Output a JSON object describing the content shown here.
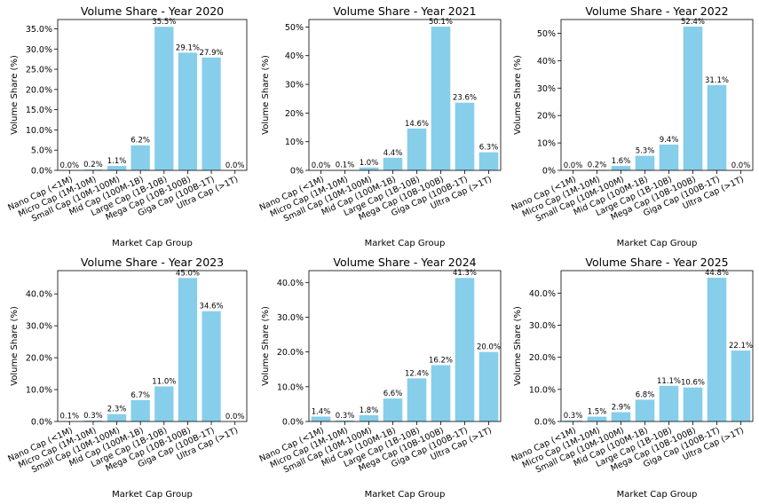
{
  "chart_data": [
    {
      "type": "bar",
      "title": "Volume Share - Year 2020",
      "xlabel": "Market Cap Group",
      "ylabel": "Volume Share (%)",
      "categories": [
        "Nano Cap (<1M)",
        "Micro Cap (1M-10M)",
        "Small Cap (10M-100M)",
        "Mid Cap (100M-1B)",
        "Large Cap (1B-10B)",
        "Mega Cap (10B-100B)",
        "Giga Cap (100B-1T)",
        "Ultra Cap (>1T)"
      ],
      "values": [
        0.0,
        0.2,
        1.1,
        6.2,
        35.5,
        29.1,
        27.9,
        0.0
      ],
      "ylim": [
        0,
        37.3
      ],
      "yticks": [
        0,
        5,
        10,
        15,
        20,
        25,
        30,
        35
      ],
      "ytick_labels": [
        "0.0%",
        "5.0%",
        "10.0%",
        "15.0%",
        "20.0%",
        "25.0%",
        "30.0%",
        "35.0%"
      ],
      "bar_color": "#87ceeb"
    },
    {
      "type": "bar",
      "title": "Volume Share - Year 2021",
      "xlabel": "Market Cap Group",
      "ylabel": "Volume Share (%)",
      "categories": [
        "Nano Cap (<1M)",
        "Micro Cap (1M-10M)",
        "Small Cap (10M-100M)",
        "Mid Cap (100M-1B)",
        "Large Cap (1B-10B)",
        "Mega Cap (10B-100B)",
        "Giga Cap (100B-1T)",
        "Ultra Cap (>1T)"
      ],
      "values": [
        0.0,
        0.1,
        1.0,
        4.4,
        14.6,
        50.1,
        23.6,
        6.3
      ],
      "ylim": [
        0,
        52.6
      ],
      "yticks": [
        0,
        10,
        20,
        30,
        40,
        50
      ],
      "ytick_labels": [
        "0%",
        "10%",
        "20%",
        "30%",
        "40%",
        "50%"
      ],
      "bar_color": "#87ceeb"
    },
    {
      "type": "bar",
      "title": "Volume Share - Year 2022",
      "xlabel": "Market Cap Group",
      "ylabel": "Volume Share (%)",
      "categories": [
        "Nano Cap (<1M)",
        "Micro Cap (1M-10M)",
        "Small Cap (10M-100M)",
        "Mid Cap (100M-1B)",
        "Large Cap (1B-10B)",
        "Mega Cap (10B-100B)",
        "Giga Cap (100B-1T)",
        "Ultra Cap (>1T)"
      ],
      "values": [
        0.0,
        0.2,
        1.6,
        5.3,
        9.4,
        52.4,
        31.1,
        0.0
      ],
      "ylim": [
        0,
        55.0
      ],
      "yticks": [
        0,
        10,
        20,
        30,
        40,
        50
      ],
      "ytick_labels": [
        "0%",
        "10%",
        "20%",
        "30%",
        "40%",
        "50%"
      ],
      "bar_color": "#87ceeb"
    },
    {
      "type": "bar",
      "title": "Volume Share - Year 2023",
      "xlabel": "Market Cap Group",
      "ylabel": "Volume Share (%)",
      "categories": [
        "Nano Cap (<1M)",
        "Micro Cap (1M-10M)",
        "Small Cap (10M-100M)",
        "Mid Cap (100M-1B)",
        "Large Cap (1B-10B)",
        "Mega Cap (10B-100B)",
        "Giga Cap (100B-1T)",
        "Ultra Cap (>1T)"
      ],
      "values": [
        0.1,
        0.3,
        2.3,
        6.7,
        11.0,
        45.0,
        34.6,
        0.0
      ],
      "ylim": [
        0,
        47.3
      ],
      "yticks": [
        0,
        10,
        20,
        30,
        40
      ],
      "ytick_labels": [
        "0.0%",
        "10.0%",
        "20.0%",
        "30.0%",
        "40.0%"
      ],
      "bar_color": "#87ceeb"
    },
    {
      "type": "bar",
      "title": "Volume Share - Year 2024",
      "xlabel": "Market Cap Group",
      "ylabel": "Volume Share (%)",
      "categories": [
        "Nano Cap (<1M)",
        "Micro Cap (1M-10M)",
        "Small Cap (10M-100M)",
        "Mid Cap (100M-1B)",
        "Large Cap (1B-10B)",
        "Mega Cap (10B-100B)",
        "Giga Cap (100B-1T)",
        "Ultra Cap (>1T)"
      ],
      "values": [
        1.4,
        0.3,
        1.8,
        6.6,
        12.4,
        16.2,
        41.3,
        20.0
      ],
      "ylim": [
        0,
        43.4
      ],
      "yticks": [
        0,
        10,
        20,
        30,
        40
      ],
      "ytick_labels": [
        "0.0%",
        "10.0%",
        "20.0%",
        "30.0%",
        "40.0%"
      ],
      "bar_color": "#87ceeb"
    },
    {
      "type": "bar",
      "title": "Volume Share - Year 2025",
      "xlabel": "Market Cap Group",
      "ylabel": "Volume Share (%)",
      "categories": [
        "Nano Cap (<1M)",
        "Micro Cap (1M-10M)",
        "Small Cap (10M-100M)",
        "Mid Cap (100M-1B)",
        "Large Cap (1B-10B)",
        "Mega Cap (10B-100B)",
        "Giga Cap (100B-1T)",
        "Ultra Cap (>1T)"
      ],
      "values": [
        0.3,
        1.5,
        2.9,
        6.8,
        11.1,
        10.6,
        44.8,
        22.1
      ],
      "ylim": [
        0,
        47.0
      ],
      "yticks": [
        0,
        10,
        20,
        30,
        40
      ],
      "ytick_labels": [
        "0.0%",
        "10.0%",
        "20.0%",
        "30.0%",
        "40.0%"
      ],
      "bar_color": "#87ceeb"
    }
  ]
}
